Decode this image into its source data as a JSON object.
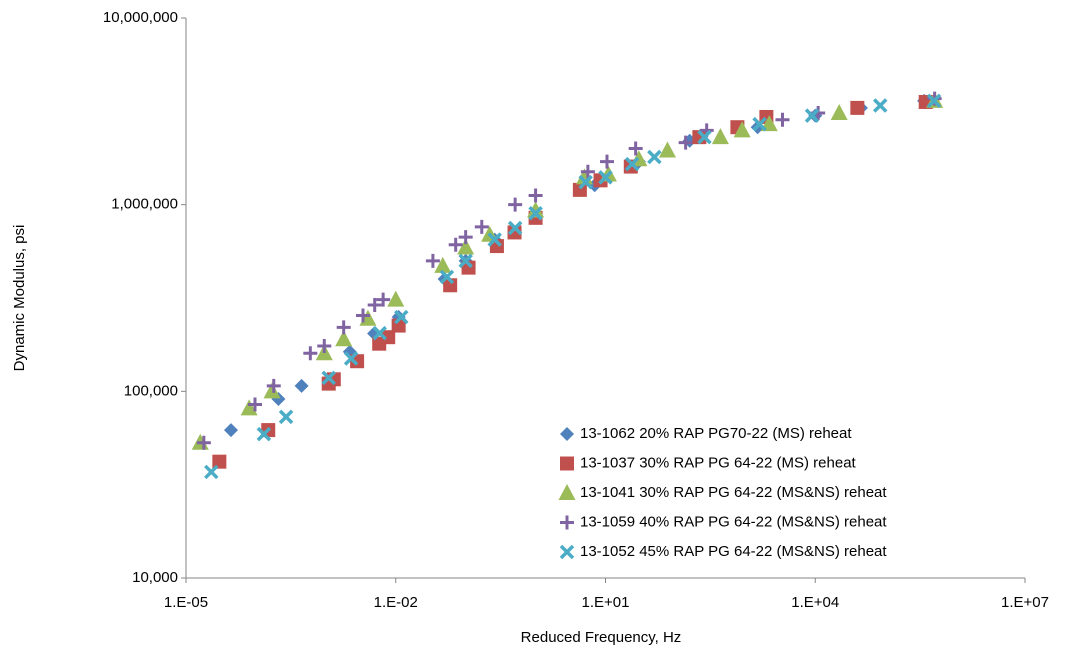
{
  "chart_data": {
    "type": "scatter",
    "x_label": "Reduced Frequency, Hz",
    "y_label": "Dynamic Modulus, psi",
    "xscale": "log",
    "yscale": "log",
    "grid": false,
    "legend": "lower right",
    "xlim": [
      1e-05,
      10000000
    ],
    "xticks": [
      {
        "value": 1e-05,
        "label": "1.E-05"
      },
      {
        "value": 0.01,
        "label": "1.E-02"
      },
      {
        "value": 10,
        "label": "1.E+01"
      },
      {
        "value": 10000,
        "label": "1.E+04"
      },
      {
        "value": 10000000,
        "label": "1.E+07"
      }
    ],
    "ylim": [
      10000,
      10000000
    ],
    "yticks": [
      {
        "value": 10000,
        "label": "10,000"
      },
      {
        "value": 100000,
        "label": "100,000"
      },
      {
        "value": 1000000,
        "label": "1,000,000"
      },
      {
        "value": 10000000,
        "label": "10,000,000"
      }
    ],
    "series": [
      {
        "name": "13-1062 20% RAP PG70-22 (MS) reheat",
        "color": "#4f81bd",
        "marker": "diamond",
        "x": [
          4.4e-05,
          0.00021,
          0.00045,
          0.0022,
          0.0049,
          0.011,
          0.05,
          0.1,
          0.26,
          1.0,
          7,
          30,
          160,
          1500,
          10000,
          45000,
          360000
        ],
        "values": [
          62000,
          91000,
          107000,
          163000,
          204000,
          250000,
          400000,
          500000,
          650000,
          900000,
          1270000,
          1700000,
          2200000,
          2600000,
          3000000,
          3300000,
          3600000
        ]
      },
      {
        "name": "13-1037 30% RAP PG 64-22 (MS) reheat",
        "color": "#c0504d",
        "marker": "square",
        "x": [
          3e-05,
          0.00015,
          0.0011,
          0.0013,
          0.0028,
          0.0058,
          0.0078,
          0.011,
          0.06,
          0.11,
          0.28,
          0.5,
          1.0,
          4.3,
          8.5,
          23,
          220,
          770,
          2000,
          40000,
          380000
        ],
        "values": [
          42000,
          62000,
          110000,
          116000,
          145000,
          180000,
          195000,
          225000,
          370000,
          460000,
          600000,
          710000,
          850000,
          1200000,
          1350000,
          1600000,
          2300000,
          2600000,
          2950000,
          3300000,
          3550000
        ]
      },
      {
        "name": "13-1041 30% RAP PG 64-22 (MS&NS) reheat",
        "color": "#9bbb59",
        "marker": "triangle",
        "x": [
          1.6e-05,
          8e-05,
          0.00017,
          0.00095,
          0.0018,
          0.004,
          0.01,
          0.047,
          0.1,
          0.22,
          1.0,
          5,
          11,
          30,
          77,
          440,
          900,
          2200,
          22000,
          510000
        ],
        "values": [
          53000,
          81000,
          100000,
          160000,
          190000,
          245000,
          310000,
          470000,
          590000,
          690000,
          930000,
          1400000,
          1450000,
          1750000,
          1950000,
          2300000,
          2500000,
          2700000,
          3100000,
          3600000
        ]
      },
      {
        "name": "13-1059 40% RAP PG 64-22 (MS&NS) reheat",
        "color": "#8064a2",
        "marker": "plus",
        "x": [
          1.8e-05,
          9.7e-05,
          0.00018,
          0.0006,
          0.00095,
          0.0018,
          0.0034,
          0.005,
          0.0066,
          0.034,
          0.072,
          0.1,
          0.17,
          0.51,
          1.0,
          5.6,
          10.5,
          27,
          140,
          280,
          3400,
          11000,
          510000
        ],
        "values": [
          53000,
          85000,
          107000,
          160000,
          175000,
          220000,
          255000,
          290000,
          310000,
          500000,
          610000,
          670000,
          760000,
          1000000,
          1120000,
          1500000,
          1700000,
          2000000,
          2150000,
          2500000,
          2850000,
          3100000,
          3700000
        ]
      },
      {
        "name": "13-1052 45% RAP PG 64-22 (MS&NS) reheat",
        "color": "#4bacc6",
        "marker": "x",
        "x": [
          2.3e-05,
          0.00013,
          0.00027,
          0.0011,
          0.0023,
          0.0059,
          0.012,
          0.054,
          0.1,
          0.26,
          0.51,
          1.0,
          5.2,
          10,
          24,
          50,
          260,
          1600,
          9000,
          85000,
          500000
        ],
        "values": [
          37000,
          59000,
          73000,
          118000,
          150000,
          205000,
          250000,
          410000,
          500000,
          650000,
          750000,
          900000,
          1320000,
          1400000,
          1650000,
          1800000,
          2300000,
          2700000,
          3000000,
          3400000,
          3600000
        ]
      }
    ]
  }
}
